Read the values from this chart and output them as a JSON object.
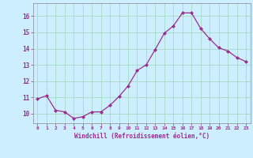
{
  "x": [
    0,
    1,
    2,
    3,
    4,
    5,
    6,
    7,
    8,
    9,
    10,
    11,
    12,
    13,
    14,
    15,
    16,
    17,
    18,
    19,
    20,
    21,
    22,
    23
  ],
  "y": [
    10.9,
    11.1,
    10.2,
    10.1,
    9.7,
    9.8,
    10.1,
    10.1,
    10.5,
    11.05,
    11.7,
    12.65,
    13.0,
    13.95,
    14.95,
    15.4,
    16.2,
    16.2,
    15.25,
    14.6,
    14.05,
    13.85,
    13.45,
    13.2
  ],
  "line_color": "#9b2d8e",
  "marker": "D",
  "marker_size": 2.0,
  "bg_color": "#cceeff",
  "grid_color": "#aaddcc",
  "xlabel": "Windchill (Refroidissement éolien,°C)",
  "ylabel_ticks": [
    10,
    11,
    12,
    13,
    14,
    15,
    16
  ],
  "xlim": [
    -0.5,
    23.5
  ],
  "ylim": [
    9.4,
    16.8
  ]
}
